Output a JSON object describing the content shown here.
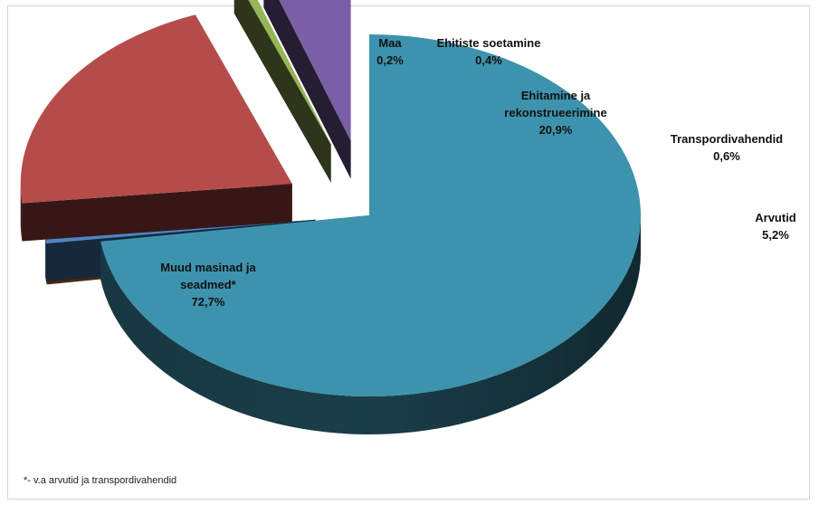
{
  "chart_data": {
    "type": "pie",
    "title": "",
    "style": "3d-exploded",
    "slices": [
      {
        "label_lines": [
          "Muud masinad ja",
          "seadmed*"
        ],
        "value": 72.7,
        "value_label": "72,7%",
        "color": "#3d93ad",
        "exploded": false
      },
      {
        "label_lines": [
          "Maa"
        ],
        "value": 0.2,
        "value_label": "0,2%",
        "color": "#e6873a",
        "exploded": true
      },
      {
        "label_lines": [
          "Ehitiste soetamine"
        ],
        "value": 0.4,
        "value_label": "0,4%",
        "color": "#4e84c6",
        "exploded": true
      },
      {
        "label_lines": [
          "Ehitamine ja",
          "rekonstrueerimine"
        ],
        "value": 20.9,
        "value_label": "20,9%",
        "color": "#b64c4a",
        "exploded": true
      },
      {
        "label_lines": [
          "Transpordivahendid"
        ],
        "value": 0.6,
        "value_label": "0,6%",
        "color": "#95b556",
        "exploded": true
      },
      {
        "label_lines": [
          "Arvutid"
        ],
        "value": 5.2,
        "value_label": "5,2%",
        "color": "#7a5fa6",
        "exploded": true
      }
    ]
  },
  "footnote": "*-  v.a arvutid ja transpordivahendid"
}
